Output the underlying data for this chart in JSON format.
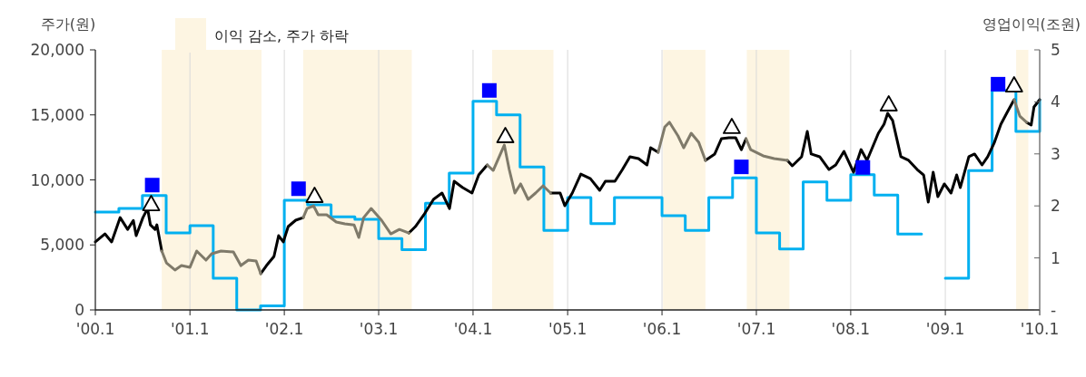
{
  "chart_data": {
    "type": "line",
    "ylabel": "주가(원)",
    "y2label": "영업이익(조원)",
    "grid": "x",
    "legend": "top left",
    "xlim": [
      "2000-01",
      "2010-01"
    ],
    "xticks": [
      {
        "value": "2000-01",
        "label": "'00.1"
      },
      {
        "value": "2001-01",
        "label": "'01.1"
      },
      {
        "value": "2002-01",
        "label": "'02.1"
      },
      {
        "value": "2003-01",
        "label": "'03.1"
      },
      {
        "value": "2004-01",
        "label": "'04.1"
      },
      {
        "value": "2005-01",
        "label": "'05.1"
      },
      {
        "value": "2006-01",
        "label": "'06.1"
      },
      {
        "value": "2007-01",
        "label": "'07.1"
      },
      {
        "value": "2008-01",
        "label": "'08.1"
      },
      {
        "value": "2009-01",
        "label": "'09.1"
      },
      {
        "value": "2010-01",
        "label": "'10.1"
      }
    ],
    "ylim": [
      0,
      20000
    ],
    "yticks": [
      0,
      {
        "value": 5000,
        "label": "5,000"
      },
      {
        "value": 10000,
        "label": "10,000"
      },
      {
        "value": 15000,
        "label": "15,000"
      },
      {
        "value": 20000,
        "label": "20,000"
      }
    ],
    "y2lim": [
      0,
      5
    ],
    "y2ticks": [
      {
        "value": 0,
        "label": "-"
      },
      1,
      2,
      3,
      4,
      5
    ],
    "bands": [
      {
        "axis": "x",
        "from": "2000-09-14",
        "to": "2001-10-05",
        "label": "이익 감소, 주가 하락",
        "color": "#fdf5e2"
      },
      {
        "axis": "x",
        "from": "2002-03-15",
        "to": "2003-05-09",
        "color": "#fdf5e2"
      },
      {
        "axis": "x",
        "from": "2004-03-15",
        "to": "2004-11-07",
        "color": "#fdf5e2"
      },
      {
        "axis": "x",
        "from": "2006-01-05",
        "to": "2006-06-18",
        "color": "#fdf5e2"
      },
      {
        "axis": "x",
        "from": "2006-11-25",
        "to": "2007-05-09",
        "color": "#fdf5e2"
      },
      {
        "axis": "x",
        "from": "2009-10-02",
        "to": "2009-11-18",
        "color": "#fdf5e2"
      }
    ],
    "x": [
      "2000-01-01",
      "2000-02-07",
      "2000-03-04",
      "2000-04-06",
      "2000-05-05",
      "2000-05-27",
      "2000-06-07",
      "2000-07-03",
      "2000-07-21",
      "2000-08-01",
      "2000-08-19",
      "2000-08-26",
      "2000-09-14",
      "2000-10-02",
      "2000-11-04",
      "2000-11-29",
      "2001-01-01",
      "2001-01-27",
      "2001-03-04",
      "2001-03-26",
      "2001-05-01",
      "2001-06-18",
      "2001-07-17",
      "2001-08-15",
      "2001-09-14",
      "2001-10-02",
      "2001-10-24",
      "2001-11-22",
      "2001-12-10",
      "2001-12-28",
      "2002-01-16",
      "2002-02-14",
      "2002-03-15",
      "2002-03-30",
      "2002-04-24",
      "2002-05-12",
      "2002-06-14",
      "2002-07-21",
      "2002-08-23",
      "2002-09-28",
      "2002-10-16",
      "2002-11-04",
      "2002-12-03",
      "2003-01-12",
      "2003-02-17",
      "2003-03-22",
      "2003-04-28",
      "2003-05-23",
      "2003-06-25",
      "2003-08-01",
      "2003-09-03",
      "2003-10-02",
      "2003-10-20",
      "2003-11-22",
      "2003-12-28",
      "2004-01-23",
      "2004-02-25",
      "2004-03-19",
      "2004-05-01",
      "2004-05-20",
      "2004-06-11",
      "2004-07-03",
      "2004-08-01",
      "2004-08-30",
      "2004-09-28",
      "2004-10-27",
      "2004-12-03",
      "2004-12-21",
      "2005-01-19",
      "2005-02-21",
      "2005-03-30",
      "2005-05-05",
      "2005-05-27",
      "2005-07-03",
      "2005-08-01",
      "2005-08-30",
      "2005-10-02",
      "2005-11-04",
      "2005-11-18",
      "2005-12-17",
      "2006-01-12",
      "2006-01-30",
      "2006-03-04",
      "2006-03-26",
      "2006-04-24",
      "2006-05-23",
      "2006-06-18",
      "2006-07-24",
      "2006-08-19",
      "2006-09-17",
      "2006-10-13",
      "2006-11-04",
      "2006-11-22",
      "2006-12-10",
      "2007-01-27",
      "2007-03-11",
      "2007-05-01",
      "2007-05-20",
      "2007-06-25",
      "2007-07-17",
      "2007-08-01",
      "2007-09-03",
      "2007-10-09",
      "2007-11-04",
      "2007-12-06",
      "2008-01-12",
      "2008-02-10",
      "2008-03-04",
      "2008-04-17",
      "2008-05-09",
      "2008-05-23",
      "2008-06-11",
      "2008-07-13",
      "2008-08-12",
      "2008-09-14",
      "2008-10-09",
      "2008-10-27",
      "2008-11-15",
      "2008-12-03",
      "2008-12-28",
      "2009-01-23",
      "2009-02-14",
      "2009-02-28",
      "2009-04-02",
      "2009-04-24",
      "2009-05-23",
      "2009-06-14",
      "2009-07-10",
      "2009-08-04",
      "2009-08-30",
      "2009-09-24",
      "2009-10-16",
      "2009-11-11",
      "2009-11-29",
      "2009-12-10",
      "2010-01-01"
    ],
    "series": [
      {
        "type": "step",
        "axis": "y2",
        "color": "#00b0f0",
        "x": [
          "2000-01",
          "2000-04",
          "2000-07",
          "2000-10",
          "2001-01",
          "2001-04",
          "2001-07",
          "2001-10",
          "2002-01",
          "2002-04",
          "2002-07",
          "2002-10",
          "2003-01",
          "2003-04",
          "2003-07",
          "2003-10",
          "2004-01",
          "2004-04",
          "2004-07",
          "2004-10",
          "2005-01",
          "2005-04",
          "2005-07",
          "2006-01",
          "2006-04",
          "2006-07",
          "2006-10",
          "2007-01",
          "2007-04",
          "2007-07",
          "2007-10",
          "2008-01",
          "2008-04",
          "2008-07",
          "2008-10",
          "2009-01",
          "2009-04",
          "2009-07",
          "2009-10",
          "2010-01"
        ],
        "values": [
          1.88,
          1.95,
          2.2,
          1.48,
          1.62,
          0.61,
          0,
          0.08,
          2.11,
          2.02,
          1.79,
          1.74,
          1.37,
          1.16,
          2.05,
          2.63,
          4.01,
          3.75,
          2.75,
          1.53,
          2.16,
          1.66,
          2.16,
          1.81,
          1.53,
          2.16,
          2.54,
          1.48,
          1.17,
          2.46,
          2.11,
          2.6,
          2.21,
          1.46,
          null,
          0.61,
          2.68,
          4.22,
          3.43,
          4.04
        ]
      },
      {
        "color": "#000000",
        "values": [
          5230,
          5850,
          5230,
          7100,
          6190,
          6880,
          5710,
          7100,
          7800,
          6540,
          6190,
          6540,
          4530,
          null,
          null,
          null,
          null,
          null,
          null,
          null,
          null,
          null,
          null,
          null,
          null,
          2790,
          3410,
          4110,
          5710,
          5230,
          6410,
          6900,
          7100,
          null,
          null,
          null,
          null,
          null,
          null,
          null,
          null,
          null,
          null,
          null,
          null,
          null,
          5920,
          6410,
          7320,
          8500,
          8990,
          7800,
          9900,
          9410,
          8990,
          10380,
          11150,
          null,
          null,
          null,
          null,
          null,
          null,
          null,
          null,
          8990,
          8990,
          8010,
          8990,
          10450,
          10100,
          9200,
          9900,
          9900,
          10800,
          11780,
          11640,
          11150,
          12470,
          12120,
          null,
          null,
          null,
          null,
          null,
          null,
          11500,
          11990,
          13170,
          13240,
          13240,
          12330,
          13170,
          null,
          null,
          null,
          11500,
          11080,
          11780,
          13730,
          11990,
          11780,
          10800,
          11150,
          12190,
          10590,
          12330,
          11500,
          13590,
          14290,
          15120,
          14570,
          11780,
          11500,
          10800,
          10380,
          8290,
          10590,
          8710,
          9690,
          8990,
          10380,
          9410,
          11780,
          11990,
          11150,
          11780,
          12890,
          14290,
          15260,
          16170,
          null,
          14430,
          14220,
          15610,
          16170
        ]
      },
      {
        "color": "#7f7a6a",
        "values": [
          null,
          null,
          null,
          null,
          null,
          null,
          null,
          null,
          null,
          null,
          null,
          null,
          4530,
          3620,
          3070,
          3410,
          3280,
          4530,
          3830,
          4320,
          4530,
          4460,
          3410,
          3830,
          3760,
          2790,
          null,
          null,
          null,
          null,
          null,
          null,
          7100,
          7800,
          8010,
          7320,
          7320,
          6760,
          6620,
          6540,
          5570,
          7100,
          7800,
          6900,
          5850,
          6190,
          5920,
          null,
          null,
          null,
          null,
          null,
          null,
          null,
          null,
          null,
          11150,
          10730,
          12680,
          10800,
          8990,
          9690,
          8500,
          8990,
          9550,
          8990,
          null,
          null,
          null,
          null,
          null,
          null,
          null,
          null,
          null,
          null,
          null,
          null,
          null,
          12120,
          14080,
          14430,
          13380,
          12470,
          13590,
          12890,
          11500,
          null,
          null,
          null,
          null,
          null,
          13170,
          12330,
          11850,
          11640,
          11500,
          null,
          null,
          null,
          null,
          null,
          null,
          null,
          null,
          null,
          null,
          null,
          null,
          null,
          null,
          null,
          null,
          null,
          null,
          null,
          null,
          null,
          null,
          null,
          null,
          null,
          null,
          null,
          null,
          null,
          null,
          null,
          null,
          null,
          16170,
          14910,
          14430,
          null,
          null,
          null
        ]
      },
      {
        "type": "scatter",
        "axis": "y2",
        "marker": "square",
        "color": "#0000ff",
        "x": [
          "2000-08-08",
          "2002-02-25",
          "2004-03-04",
          "2006-11-04",
          "2008-02-17",
          "2009-07-24"
        ],
        "values": [
          2.4,
          2.33,
          4.22,
          2.75,
          2.74,
          4.34
        ]
      },
      {
        "type": "scatter",
        "marker": "triangle",
        "color": "#000000",
        "x": [
          "2000-08-04",
          "2002-04-28",
          "2004-05-05",
          "2006-09-28",
          "2008-05-27",
          "2009-09-24"
        ],
        "values": [
          8150,
          8780,
          13380,
          14080,
          15820,
          17280
        ]
      }
    ]
  }
}
